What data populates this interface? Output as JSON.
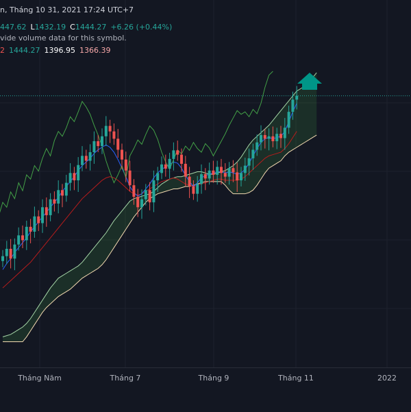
{
  "header": {
    "title_fragment": "n, Tháng 10 31, 2021 17:24 UTC+7",
    "ohlc": {
      "o": "447.62",
      "l_label": "L",
      "l": "1432.19",
      "c_label": "C",
      "c": "1444.27",
      "change": "+6.26 (+0.44%)"
    },
    "volume_note": "vide volume data for this symbol.",
    "ichimoku": {
      "prefix": "2",
      "v1": "1444.27",
      "v2": "1396.95",
      "v3": "1366.39"
    }
  },
  "colors": {
    "background": "#131722",
    "up": "#26a69a",
    "down": "#ef5350",
    "conversion": "#2962ff",
    "base": "#b71c1c",
    "lagging": "#43a047",
    "lead_a": "#a5d6a7",
    "lead_b": "#f3d9b1",
    "arrow": "#009688"
  },
  "chart_data": {
    "type": "candlestick",
    "indicator": "Ichimoku Cloud",
    "x_ticks": [
      "Tháng Năm",
      "Tháng 7",
      "Tháng 9",
      "Tháng 11",
      "2022"
    ],
    "ylim": [
      1000,
      1500
    ],
    "last_price": 1444.27,
    "closes": [
      1182,
      1194,
      1178,
      1201,
      1216,
      1208,
      1230,
      1222,
      1247,
      1236,
      1262,
      1249,
      1275,
      1268,
      1290,
      1281,
      1302,
      1318,
      1306,
      1331,
      1346,
      1338,
      1352,
      1370,
      1362,
      1378,
      1395,
      1386,
      1374,
      1356,
      1340,
      1322,
      1298,
      1279,
      1262,
      1275,
      1290,
      1270,
      1306,
      1318,
      1332,
      1325,
      1341,
      1355,
      1348,
      1333,
      1312,
      1296,
      1284,
      1300,
      1316,
      1309,
      1322,
      1315,
      1328,
      1318,
      1312,
      1326,
      1319,
      1306,
      1318,
      1330,
      1342,
      1356,
      1368,
      1380,
      1374,
      1378,
      1370,
      1382,
      1375,
      1392,
      1418,
      1438,
      1444.27
    ],
    "tenkan": [
      1160,
      1170,
      1178,
      1188,
      1196,
      1204,
      1212,
      1222,
      1230,
      1238,
      1246,
      1254,
      1262,
      1270,
      1278,
      1288,
      1296,
      1304,
      1312,
      1322,
      1330,
      1336,
      1342,
      1350,
      1356,
      1360,
      1364,
      1360,
      1352,
      1340,
      1326,
      1312,
      1296,
      1286,
      1280,
      1284,
      1292,
      1300,
      1310,
      1318,
      1324,
      1328,
      1332,
      1336,
      1334,
      1326,
      1314,
      1304,
      1296,
      1302,
      1310,
      1314,
      1316,
      1318,
      1320,
      1320,
      1318,
      1320,
      1318,
      1316,
      1318,
      1324,
      1334,
      1346,
      1358,
      1368,
      1374,
      1376,
      1374,
      1376,
      1378,
      1386,
      1402,
      1418,
      1432
    ],
    "kijun": [
      1130,
      1136,
      1142,
      1148,
      1154,
      1160,
      1166,
      1172,
      1180,
      1188,
      1196,
      1204,
      1212,
      1220,
      1228,
      1236,
      1244,
      1252,
      1260,
      1268,
      1276,
      1282,
      1288,
      1294,
      1300,
      1306,
      1310,
      1312,
      1310,
      1306,
      1300,
      1294,
      1288,
      1284,
      1282,
      1284,
      1288,
      1292,
      1296,
      1300,
      1304,
      1306,
      1308,
      1310,
      1308,
      1304,
      1300,
      1298,
      1296,
      1298,
      1300,
      1302,
      1304,
      1306,
      1308,
      1308,
      1306,
      1306,
      1306,
      1306,
      1308,
      1312,
      1318,
      1324,
      1330,
      1336,
      1342,
      1346,
      1348,
      1350,
      1352,
      1358,
      1366,
      1376,
      1386
    ],
    "senkou_a": [
      1050,
      1052,
      1054,
      1058,
      1062,
      1066,
      1072,
      1080,
      1090,
      1100,
      1110,
      1120,
      1130,
      1138,
      1146,
      1150,
      1154,
      1158,
      1162,
      1166,
      1172,
      1180,
      1188,
      1196,
      1204,
      1212,
      1220,
      1230,
      1240,
      1248,
      1256,
      1264,
      1272,
      1276,
      1278,
      1280,
      1282,
      1284,
      1288,
      1294,
      1300,
      1304,
      1308,
      1310,
      1312,
      1312,
      1314,
      1316,
      1318,
      1320,
      1320,
      1318,
      1316,
      1316,
      1318,
      1320,
      1322,
      1326,
      1330,
      1336,
      1344,
      1354,
      1364,
      1372,
      1378,
      1384,
      1390,
      1396,
      1404,
      1412,
      1420,
      1428,
      1436,
      1444,
      1452,
      1456,
      1460,
      1466,
      1474,
      1482
    ],
    "senkou_b": [
      1042,
      1042,
      1042,
      1042,
      1042,
      1042,
      1050,
      1060,
      1070,
      1080,
      1090,
      1098,
      1104,
      1110,
      1116,
      1120,
      1124,
      1128,
      1134,
      1140,
      1146,
      1150,
      1154,
      1158,
      1162,
      1168,
      1176,
      1186,
      1196,
      1206,
      1216,
      1226,
      1236,
      1246,
      1254,
      1262,
      1270,
      1276,
      1280,
      1284,
      1286,
      1288,
      1290,
      1292,
      1292,
      1294,
      1296,
      1296,
      1298,
      1300,
      1302,
      1304,
      1304,
      1304,
      1304,
      1304,
      1298,
      1290,
      1284,
      1284,
      1284,
      1284,
      1286,
      1290,
      1298,
      1308,
      1318,
      1326,
      1330,
      1334,
      1338,
      1346,
      1352,
      1356,
      1360,
      1364,
      1368,
      1372,
      1376,
      1380
    ]
  }
}
